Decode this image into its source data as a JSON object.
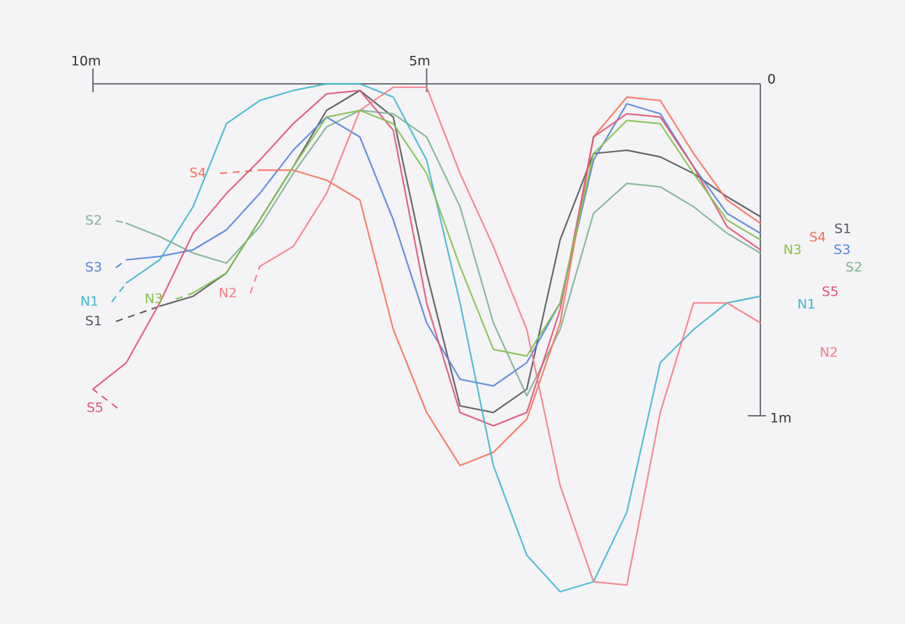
{
  "chart_data": {
    "type": "line",
    "x": [
      10,
      9.5,
      9,
      8.5,
      8,
      7.5,
      7,
      6.5,
      6,
      5.5,
      5,
      4.5,
      4,
      3.5,
      3,
      2.5,
      2,
      1.5,
      1,
      0.5,
      0
    ],
    "xlim": [
      10,
      0
    ],
    "xticks": [
      {
        "value": 10,
        "label": "10m"
      },
      {
        "value": 5,
        "label": "5m"
      },
      0
    ],
    "ylim": [
      -1.6,
      0.2
    ],
    "yticks": [
      {
        "value": -1,
        "label": "1m"
      }
    ],
    "series": [
      {
        "name": "S1",
        "color": "#58565a",
        "values": [
          null,
          null,
          -0.67,
          -0.64,
          -0.57,
          -0.41,
          -0.25,
          -0.08,
          -0.02,
          -0.1,
          -0.57,
          -0.97,
          -0.99,
          -0.92,
          -0.47,
          -0.21,
          -0.2,
          -0.22,
          -0.27,
          -0.34,
          -0.4
        ]
      },
      {
        "name": "S2",
        "color": "#7fb394",
        "values": [
          null,
          -0.42,
          -0.46,
          -0.51,
          -0.54,
          -0.43,
          -0.27,
          -0.13,
          -0.08,
          -0.09,
          -0.16,
          -0.37,
          -0.72,
          -0.94,
          -0.74,
          -0.39,
          -0.3,
          -0.31,
          -0.37,
          -0.45,
          -0.51
        ]
      },
      {
        "name": "S3",
        "color": "#5684d8",
        "values": [
          null,
          -0.53,
          -0.52,
          -0.5,
          -0.44,
          -0.33,
          -0.2,
          -0.1,
          -0.16,
          -0.41,
          -0.72,
          -0.89,
          -0.91,
          -0.84,
          -0.66,
          -0.23,
          -0.06,
          -0.09,
          -0.25,
          -0.39,
          -0.45
        ]
      },
      {
        "name": "S4",
        "color": "#f5735e",
        "values": [
          null,
          null,
          null,
          null,
          null,
          -0.26,
          -0.26,
          -0.29,
          -0.35,
          -0.74,
          -0.99,
          -1.15,
          -1.11,
          -1.01,
          -0.72,
          -0.16,
          -0.04,
          -0.05,
          -0.21,
          -0.35,
          -0.42
        ]
      },
      {
        "name": "S5",
        "color": "#df5479",
        "values": [
          -0.92,
          -0.84,
          -0.66,
          -0.45,
          -0.33,
          -0.23,
          -0.12,
          -0.03,
          -0.02,
          -0.14,
          -0.66,
          -0.99,
          -1.03,
          -0.99,
          -0.68,
          -0.16,
          -0.09,
          -0.1,
          -0.25,
          -0.43,
          -0.5
        ]
      },
      {
        "name": "N1",
        "color": "#3fb8cf",
        "values": [
          null,
          -0.6,
          -0.53,
          -0.37,
          -0.12,
          -0.05,
          -0.02,
          0.0,
          0.0,
          -0.04,
          -0.23,
          -0.66,
          -1.15,
          -1.42,
          -1.53,
          -1.5,
          -1.29,
          -0.84,
          -0.74,
          -0.66,
          -0.64
        ]
      },
      {
        "name": "N2",
        "color": "#f47d88",
        "values": [
          null,
          null,
          null,
          null,
          null,
          -0.55,
          -0.49,
          -0.33,
          -0.08,
          -0.01,
          -0.01,
          -0.27,
          -0.49,
          -0.74,
          -1.21,
          -1.5,
          -1.51,
          -0.99,
          -0.66,
          -0.66,
          -0.72
        ]
      },
      {
        "name": "N3",
        "color": "#82c24a",
        "values": [
          null,
          null,
          null,
          -0.63,
          -0.57,
          -0.41,
          -0.25,
          -0.1,
          -0.08,
          -0.12,
          -0.27,
          -0.55,
          -0.8,
          -0.82,
          -0.66,
          -0.21,
          -0.11,
          -0.12,
          -0.27,
          -0.41,
          -0.47
        ]
      }
    ]
  }
}
